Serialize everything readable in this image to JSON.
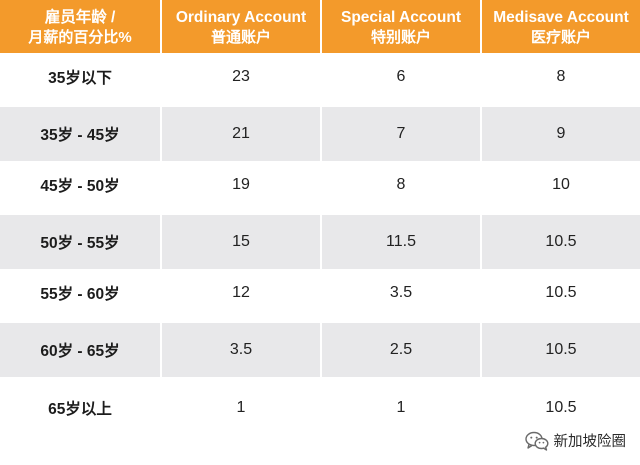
{
  "table": {
    "headers": [
      {
        "line1": "雇员年龄 /",
        "line2": "月薪的百分比%"
      },
      {
        "line1": "Ordinary Account",
        "line2": "普通账户"
      },
      {
        "line1": "Special Account",
        "line2": "特别账户"
      },
      {
        "line1": "Medisave Account",
        "line2": "医疗账户"
      }
    ],
    "rows": [
      {
        "age": "35岁以下",
        "oa": "23",
        "sa": "6",
        "ma": "8"
      },
      {
        "age": "35岁 - 45岁",
        "oa": "21",
        "sa": "7",
        "ma": "9"
      },
      {
        "age": "45岁 - 50岁",
        "oa": "19",
        "sa": "8",
        "ma": "10"
      },
      {
        "age": "50岁 - 55岁",
        "oa": "15",
        "sa": "11.5",
        "ma": "10.5"
      },
      {
        "age": "55岁 - 60岁",
        "oa": "12",
        "sa": "3.5",
        "ma": "10.5"
      },
      {
        "age": "60岁 - 65岁",
        "oa": "3.5",
        "sa": "2.5",
        "ma": "10.5"
      },
      {
        "age": "65岁以上",
        "oa": "1",
        "sa": "1",
        "ma": "10.5"
      }
    ]
  },
  "colors": {
    "header_bg": "#f39a2b",
    "stripe_bg": "#e8e8ea"
  },
  "watermark": {
    "icon": "wechat-icon",
    "text": "新加坡险圈"
  }
}
